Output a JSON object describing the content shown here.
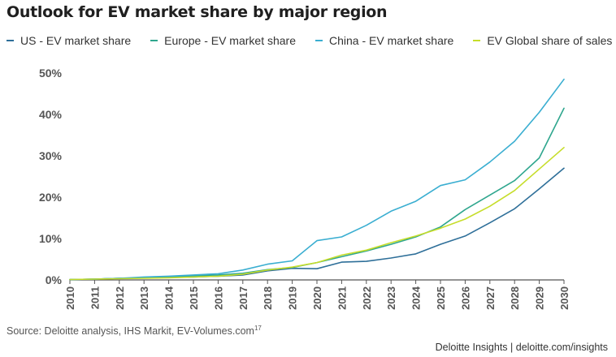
{
  "title": "Outlook for EV market share by major region",
  "source": {
    "text": "Source: Deloitte analysis, IHS Markit, EV-Volumes.com",
    "superscript": "17"
  },
  "credit": "Deloitte Insights | deloitte.com/insights",
  "chart_data": {
    "type": "line",
    "title": "Outlook for EV market share by major region",
    "xlabel": "",
    "ylabel": "",
    "x": [
      "2010",
      "2011",
      "2012",
      "2013",
      "2014",
      "2015",
      "2016",
      "2017",
      "2018",
      "2019",
      "2020",
      "2021",
      "2022",
      "2023",
      "2024",
      "2025",
      "2026",
      "2027",
      "2028",
      "2029",
      "2030"
    ],
    "ylim": [
      0,
      50
    ],
    "yticks": [
      "0%",
      "10%",
      "20%",
      "30%",
      "40%",
      "50%"
    ],
    "legend_position": "top",
    "grid": false,
    "series": [
      {
        "name": "US - EV market share",
        "color": "#2e6f99",
        "values": [
          0.1,
          0.2,
          0.4,
          0.5,
          0.6,
          0.7,
          0.9,
          1.2,
          2.2,
          2.8,
          2.7,
          4.3,
          4.5,
          5.3,
          6.3,
          8.6,
          10.6,
          13.8,
          17.2,
          22.0,
          27.0
        ]
      },
      {
        "name": "Europe - EV market share",
        "color": "#2fa68e",
        "values": [
          0.1,
          0.2,
          0.4,
          0.5,
          0.7,
          1.0,
          1.2,
          1.6,
          2.5,
          3.0,
          4.2,
          5.6,
          7.0,
          8.6,
          10.4,
          12.8,
          17.0,
          20.5,
          24.0,
          29.5,
          41.5
        ]
      },
      {
        "name": "China - EV market share",
        "color": "#3aaed1",
        "values": [
          0.1,
          0.2,
          0.4,
          0.7,
          0.9,
          1.2,
          1.5,
          2.4,
          3.8,
          4.6,
          9.5,
          10.4,
          13.2,
          16.6,
          19.0,
          22.8,
          24.2,
          28.5,
          33.5,
          40.5,
          48.5
        ]
      },
      {
        "name": "EV Global share of sales",
        "color": "#c6dd2a",
        "values": [
          0.1,
          0.2,
          0.3,
          0.4,
          0.5,
          0.7,
          0.9,
          1.4,
          2.4,
          3.1,
          4.2,
          6.0,
          7.2,
          9.0,
          10.6,
          12.5,
          14.7,
          17.8,
          21.6,
          26.8,
          32.0
        ]
      }
    ]
  }
}
